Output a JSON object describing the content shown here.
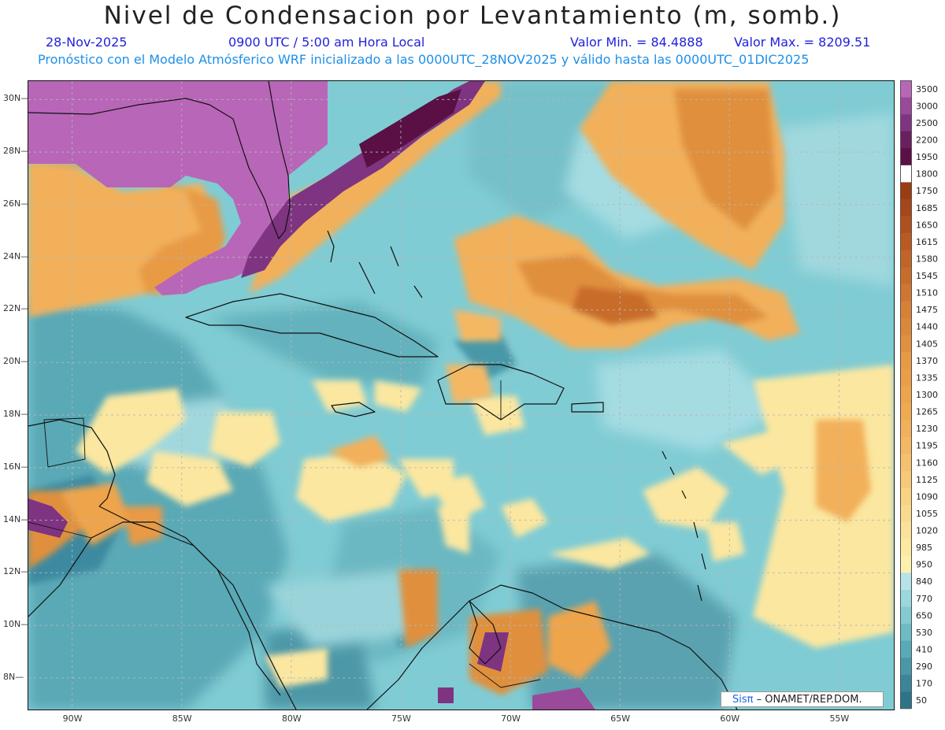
{
  "header": {
    "title": "Nivel de Condensacion por Levantamiento (m, somb.)",
    "date": "28-Nov-2025",
    "time": "0900 UTC / 5:00 am Hora Local",
    "min_label": "Valor Min. = 84.4888",
    "max_label": "Valor Max. = 8209.51",
    "subtitle": "Pronóstico con el Modelo Atmósferico WRF inicializado a las 0000UTC_28NOV2025 y válido hasta las  0000UTC_01DIC2025"
  },
  "map": {
    "lat_labels": [
      "30N",
      "28N",
      "26N",
      "24N",
      "22N",
      "20N",
      "18N",
      "16N",
      "14N",
      "12N",
      "10N",
      "8N"
    ],
    "lon_labels": [
      "90W",
      "85W",
      "80W",
      "75W",
      "70W",
      "65W",
      "60W",
      "55W"
    ],
    "lat_values": [
      30,
      28,
      26,
      24,
      22,
      20,
      18,
      16,
      14,
      12,
      10,
      8
    ],
    "lon_values": [
      -90,
      -85,
      -80,
      -75,
      -70,
      -65,
      -60,
      -55
    ],
    "extent": {
      "lon_min": -92.0,
      "lon_max": -52.5,
      "lat_min": 6.8,
      "lat_max": 30.7
    },
    "credit": {
      "logo": "Sisπ",
      "text": "– ONAMET/REP.DOM."
    }
  },
  "colorbar": {
    "levels": [
      "3500",
      "3000",
      "2500",
      "2200",
      "1950",
      "1800",
      "1750",
      "1685",
      "1650",
      "1615",
      "1580",
      "1545",
      "1510",
      "1475",
      "1440",
      "1405",
      "1370",
      "1335",
      "1300",
      "1265",
      "1230",
      "1195",
      "1160",
      "1125",
      "1090",
      "1055",
      "1020",
      "985",
      "950",
      "840",
      "770",
      "650",
      "530",
      "410",
      "290",
      "170",
      "50"
    ],
    "colors": [
      "#b866b8",
      "#9a4a9a",
      "#7e3480",
      "#6a1f5e",
      "#5a1044",
      "#ffffff",
      "#9a3c14",
      "#a6461a",
      "#b0501e",
      "#b85a22",
      "#c26428",
      "#c86c2c",
      "#d07632",
      "#d88036",
      "#dc883a",
      "#e0903e",
      "#e69a44",
      "#ea9e48",
      "#eea44c",
      "#f0aa50",
      "#f2b05a",
      "#f4b864",
      "#f6c06e",
      "#f8c878",
      "#f9d282",
      "#fada8e",
      "#fbe298",
      "#fce9a2",
      "#fdf0ac",
      "#b4e4ea",
      "#9ad8de",
      "#84cad2",
      "#6cbcc6",
      "#58aab8",
      "#4898a8",
      "#3a8698",
      "#2e7488"
    ]
  }
}
